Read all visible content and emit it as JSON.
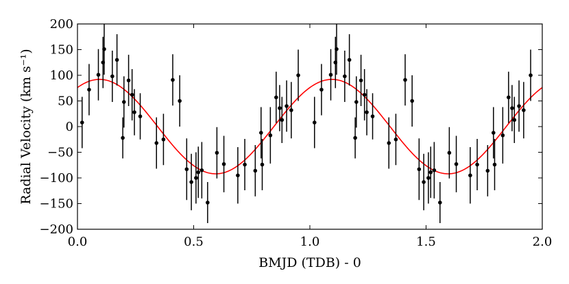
{
  "chart_data": {
    "type": "scatter",
    "xlabel": "BMJD (TDB) - 0",
    "ylabel": "Radial Velocity (km s⁻¹)",
    "xlim": [
      0.0,
      2.0
    ],
    "ylim": [
      -200,
      200
    ],
    "x_ticks": [
      0.0,
      0.5,
      1.0,
      1.5,
      2.0
    ],
    "x_tick_labels": [
      "0.0",
      "0.5",
      "1.0",
      "1.5",
      "2.0"
    ],
    "y_ticks": [
      -200,
      -150,
      -100,
      -50,
      0,
      50,
      100,
      150,
      200
    ],
    "y_tick_labels": [
      "−200",
      "−150",
      "−100",
      "−50",
      "0",
      "50",
      "100",
      "150",
      "200"
    ],
    "grid": false,
    "legend": "none",
    "observations": {
      "color": "#000000",
      "points": [
        {
          "x": 0.02,
          "y": 8,
          "err": 50
        },
        {
          "x": 0.05,
          "y": 72,
          "err": 50
        },
        {
          "x": 0.09,
          "y": 101,
          "err": 50
        },
        {
          "x": 0.11,
          "y": 125,
          "err": 50
        },
        {
          "x": 0.115,
          "y": 151,
          "err": 50
        },
        {
          "x": 0.15,
          "y": 98,
          "err": 50
        },
        {
          "x": 0.17,
          "y": 130,
          "err": 50
        },
        {
          "x": 0.195,
          "y": -22,
          "err": 40
        },
        {
          "x": 0.2,
          "y": 48,
          "err": 50
        },
        {
          "x": 0.22,
          "y": 90,
          "err": 50
        },
        {
          "x": 0.235,
          "y": 62,
          "err": 50
        },
        {
          "x": 0.245,
          "y": 28,
          "err": 45
        },
        {
          "x": 0.27,
          "y": 20,
          "err": 45
        },
        {
          "x": 0.34,
          "y": -32,
          "err": 50
        },
        {
          "x": 0.37,
          "y": -25,
          "err": 50
        },
        {
          "x": 0.41,
          "y": 91,
          "err": 50
        },
        {
          "x": 0.44,
          "y": 50,
          "err": 50
        },
        {
          "x": 0.47,
          "y": -83,
          "err": 60
        },
        {
          "x": 0.49,
          "y": -108,
          "err": 55
        },
        {
          "x": 0.51,
          "y": -100,
          "err": 50
        },
        {
          "x": 0.52,
          "y": -89,
          "err": 50
        },
        {
          "x": 0.535,
          "y": -85,
          "err": 55
        },
        {
          "x": 0.56,
          "y": -148,
          "err": 40
        },
        {
          "x": 0.6,
          "y": -51,
          "err": 50
        },
        {
          "x": 0.63,
          "y": -73,
          "err": 55
        },
        {
          "x": 0.69,
          "y": -95,
          "err": 55
        },
        {
          "x": 0.72,
          "y": -74,
          "err": 50
        },
        {
          "x": 0.765,
          "y": -86,
          "err": 50
        },
        {
          "x": 0.79,
          "y": -12,
          "err": 50
        },
        {
          "x": 0.795,
          "y": -74,
          "err": 50
        },
        {
          "x": 0.83,
          "y": -17,
          "err": 55
        },
        {
          "x": 0.855,
          "y": 57,
          "err": 50
        },
        {
          "x": 0.87,
          "y": 36,
          "err": 45
        },
        {
          "x": 0.88,
          "y": 13,
          "err": 45
        },
        {
          "x": 0.9,
          "y": 40,
          "err": 50
        },
        {
          "x": 0.92,
          "y": 32,
          "err": 55
        },
        {
          "x": 0.95,
          "y": 100,
          "err": 50
        },
        {
          "x": 1.02,
          "y": 8,
          "err": 50
        },
        {
          "x": 1.05,
          "y": 72,
          "err": 50
        },
        {
          "x": 1.09,
          "y": 101,
          "err": 50
        },
        {
          "x": 1.11,
          "y": 125,
          "err": 50
        },
        {
          "x": 1.115,
          "y": 151,
          "err": 50
        },
        {
          "x": 1.15,
          "y": 98,
          "err": 50
        },
        {
          "x": 1.17,
          "y": 130,
          "err": 50
        },
        {
          "x": 1.195,
          "y": -22,
          "err": 40
        },
        {
          "x": 1.2,
          "y": 48,
          "err": 50
        },
        {
          "x": 1.22,
          "y": 90,
          "err": 50
        },
        {
          "x": 1.235,
          "y": 62,
          "err": 50
        },
        {
          "x": 1.245,
          "y": 28,
          "err": 45
        },
        {
          "x": 1.27,
          "y": 20,
          "err": 45
        },
        {
          "x": 1.34,
          "y": -32,
          "err": 50
        },
        {
          "x": 1.37,
          "y": -25,
          "err": 50
        },
        {
          "x": 1.41,
          "y": 91,
          "err": 50
        },
        {
          "x": 1.44,
          "y": 50,
          "err": 50
        },
        {
          "x": 1.47,
          "y": -83,
          "err": 60
        },
        {
          "x": 1.49,
          "y": -108,
          "err": 55
        },
        {
          "x": 1.51,
          "y": -100,
          "err": 50
        },
        {
          "x": 1.52,
          "y": -89,
          "err": 50
        },
        {
          "x": 1.535,
          "y": -85,
          "err": 55
        },
        {
          "x": 1.56,
          "y": -148,
          "err": 40
        },
        {
          "x": 1.6,
          "y": -51,
          "err": 50
        },
        {
          "x": 1.63,
          "y": -73,
          "err": 55
        },
        {
          "x": 1.69,
          "y": -95,
          "err": 55
        },
        {
          "x": 1.72,
          "y": -74,
          "err": 50
        },
        {
          "x": 1.765,
          "y": -86,
          "err": 50
        },
        {
          "x": 1.79,
          "y": -12,
          "err": 50
        },
        {
          "x": 1.795,
          "y": -74,
          "err": 50
        },
        {
          "x": 1.83,
          "y": -17,
          "err": 55
        },
        {
          "x": 1.855,
          "y": 57,
          "err": 50
        },
        {
          "x": 1.87,
          "y": 36,
          "err": 45
        },
        {
          "x": 1.88,
          "y": 13,
          "err": 45
        },
        {
          "x": 1.9,
          "y": 40,
          "err": 50
        },
        {
          "x": 1.92,
          "y": 32,
          "err": 55
        },
        {
          "x": 1.95,
          "y": 100,
          "err": 50
        }
      ]
    },
    "model": {
      "type": "line",
      "color": "#ff0000",
      "amplitude": 92,
      "period": 1.0,
      "phase_of_maximum": 0.095,
      "offset": 0
    }
  }
}
